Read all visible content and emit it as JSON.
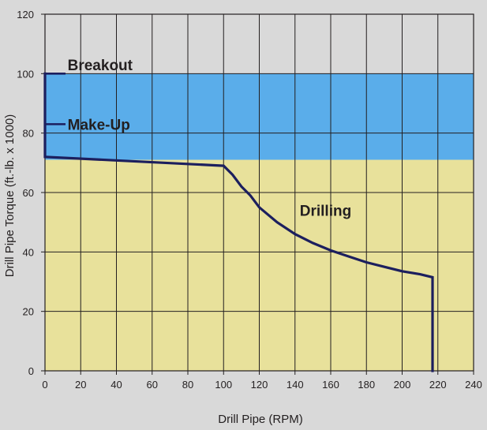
{
  "chart_data": {
    "type": "line",
    "title": "",
    "xlabel": "Drill Pipe (RPM)",
    "ylabel": "Drill Pipe Torque (ft.-lb. x 1000)",
    "xlim": [
      0,
      240
    ],
    "ylim": [
      0,
      120
    ],
    "x_ticks": [
      "0",
      "20",
      "40",
      "60",
      "80",
      "100",
      "120",
      "140",
      "160",
      "180",
      "200",
      "220",
      "240"
    ],
    "y_ticks": [
      "0",
      "20",
      "40",
      "60",
      "80",
      "100",
      "120"
    ],
    "grid": true,
    "regions": [
      {
        "y_from": 71,
        "y_to": 100,
        "color": "#5aadea"
      },
      {
        "y_from": 0,
        "y_to": 71,
        "color": "#e8e19b"
      }
    ],
    "series": [
      {
        "x": [
          0,
          0,
          100,
          105,
          110,
          115,
          120,
          130,
          140,
          150,
          160,
          170,
          180,
          190,
          200,
          210,
          217,
          217
        ],
        "y": [
          100,
          72,
          69,
          66,
          62,
          59,
          55,
          50,
          46,
          43,
          40.5,
          38.5,
          36.5,
          35,
          33.5,
          32.5,
          31.5,
          0
        ],
        "color": "#1c1f5e"
      }
    ],
    "markers": [
      {
        "x": 0,
        "y": 100
      },
      {
        "x": 0,
        "y": 83
      }
    ],
    "annotations": [
      {
        "text": "Breakout",
        "x": 10,
        "y": 103
      },
      {
        "text": "Make-Up",
        "x": 10,
        "y": 83
      },
      {
        "text": "Drilling",
        "x": 140,
        "y": 54
      }
    ]
  }
}
